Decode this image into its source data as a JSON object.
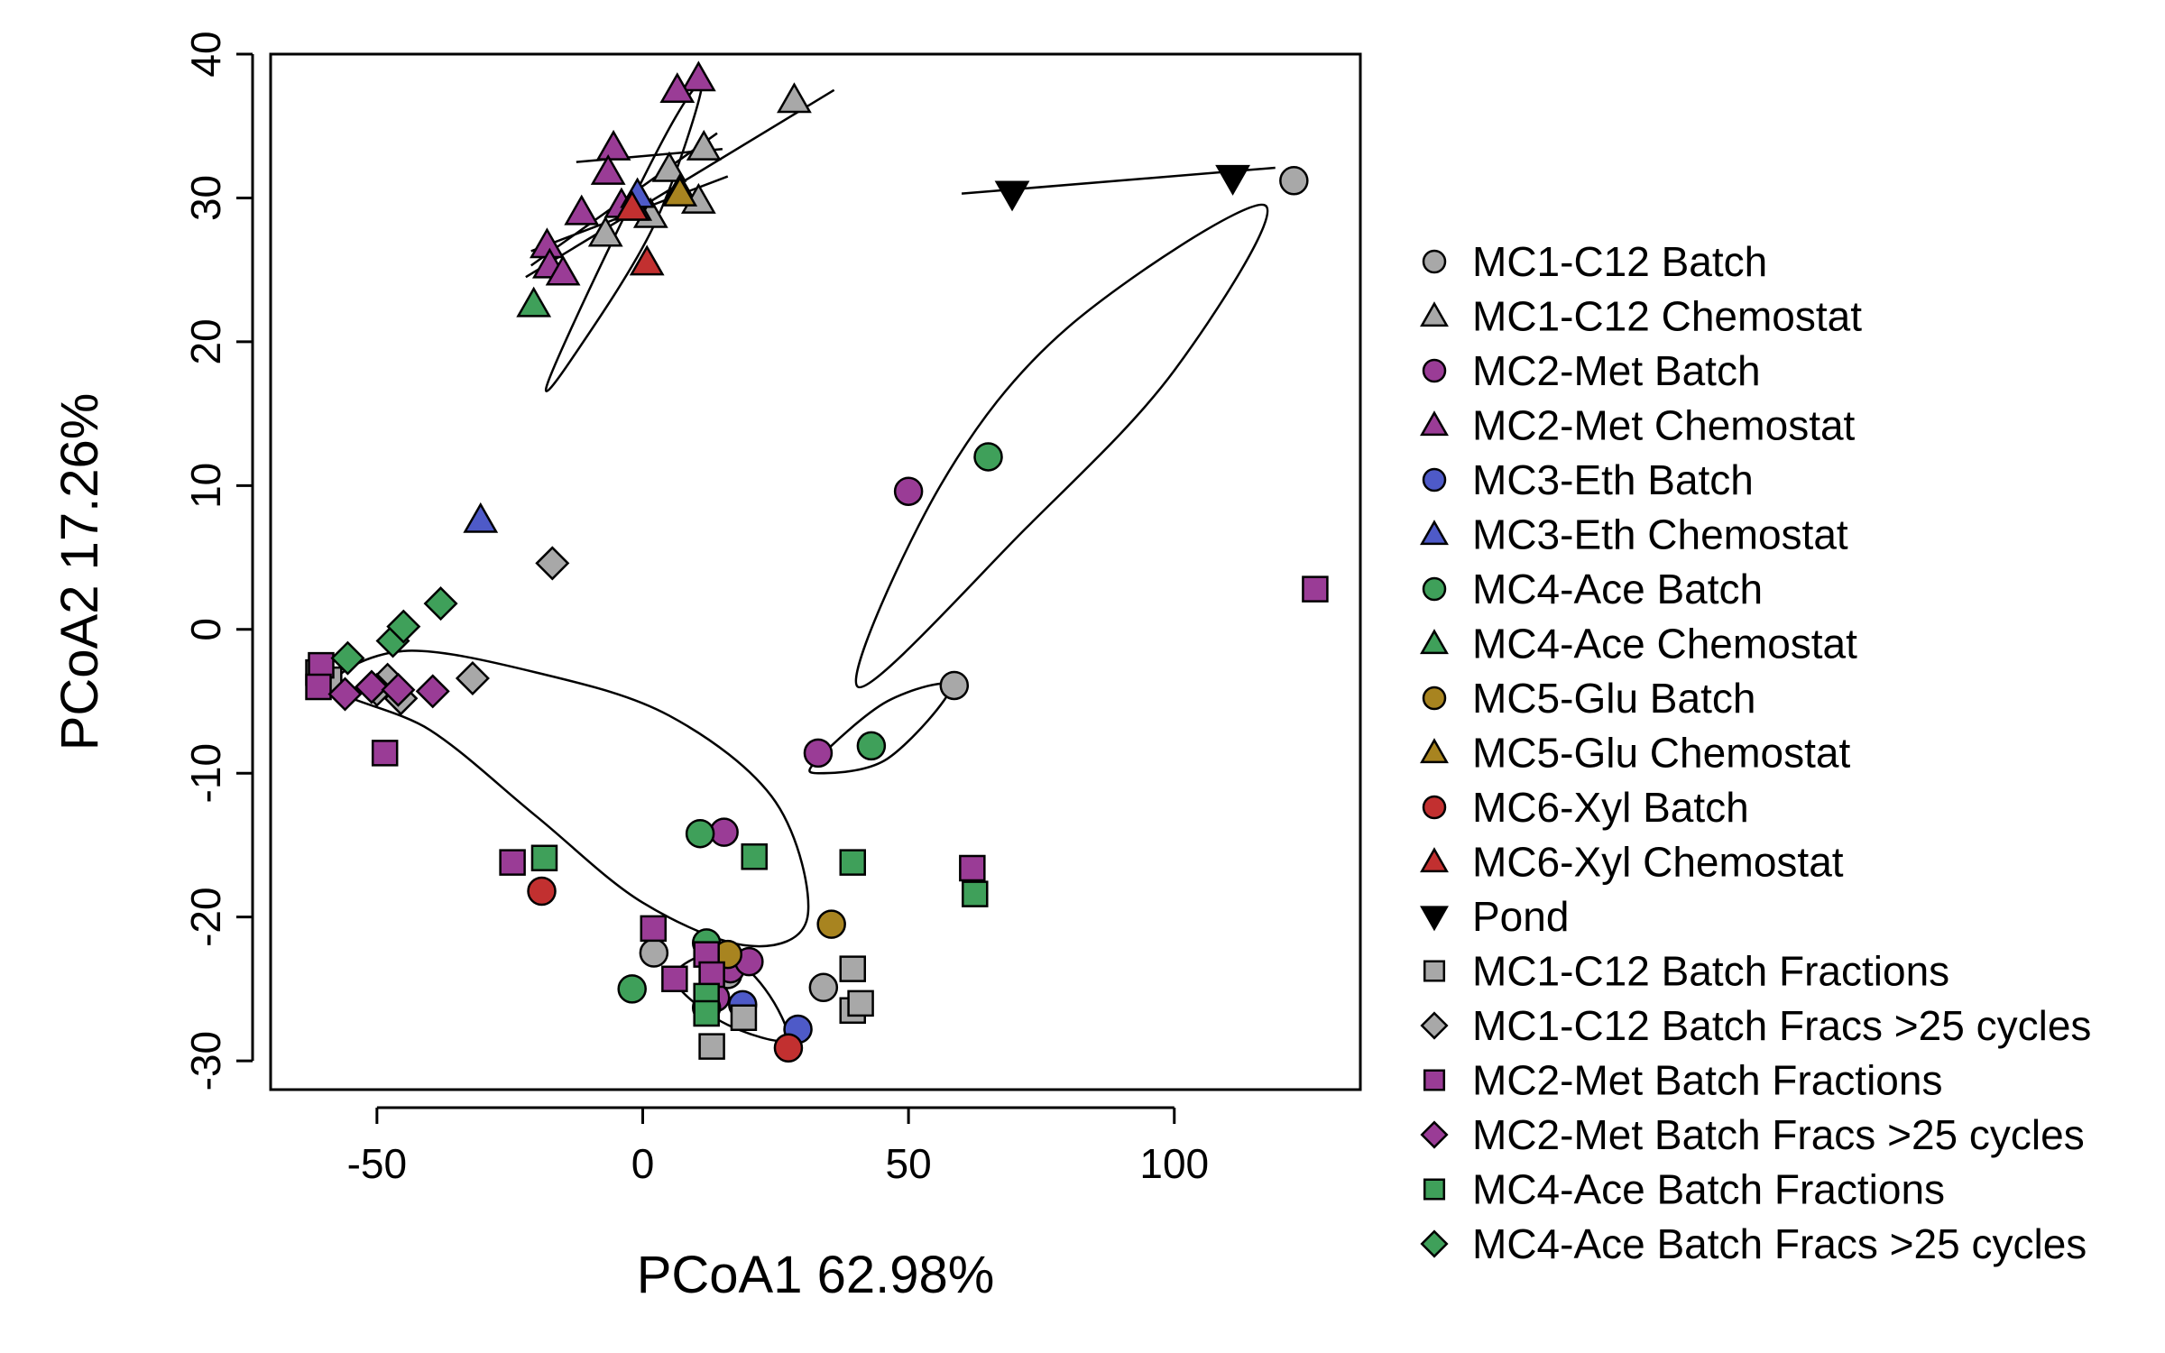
{
  "chart_data": {
    "type": "scatter",
    "title": "",
    "xlabel": "PCoA1 62.98%",
    "ylabel": "PCoA2 17.26%",
    "xlim": [
      -70,
      135
    ],
    "ylim": [
      -32,
      40
    ],
    "xticks": [
      -50,
      0,
      50,
      100
    ],
    "yticks": [
      -30,
      -20,
      -10,
      0,
      10,
      20,
      30,
      40
    ],
    "grid": false,
    "legend_position": "right",
    "series": [
      {
        "name": "MC1-C12 Batch",
        "marker": "circle",
        "color": "#a8a8a8",
        "points": [
          [
            122.5,
            31.2
          ],
          [
            58.6,
            -3.9
          ],
          [
            2.1,
            -22.5
          ],
          [
            34,
            -24.9
          ],
          [
            16,
            -24
          ]
        ]
      },
      {
        "name": "MC1-C12 Chemostat",
        "marker": "triangle",
        "color": "#a8a8a8",
        "points": [
          [
            28.5,
            36.8
          ],
          [
            11.5,
            33.5
          ],
          [
            5,
            32
          ],
          [
            7,
            30.5
          ],
          [
            10.5,
            29.8
          ],
          [
            1.5,
            28.8
          ],
          [
            -7,
            27.5
          ]
        ]
      },
      {
        "name": "MC2-Met Batch",
        "marker": "circle",
        "color": "#9a3c96",
        "points": [
          [
            50,
            9.6
          ],
          [
            33,
            -8.6
          ],
          [
            15.3,
            -14.1
          ],
          [
            16.5,
            -23.6
          ],
          [
            20,
            -23.1
          ],
          [
            13.7,
            -25.6
          ]
        ]
      },
      {
        "name": "MC2-Met Chemostat",
        "marker": "triangle",
        "color": "#9a3c96",
        "points": [
          [
            10.5,
            38.3
          ],
          [
            6.5,
            37.5
          ],
          [
            -5.5,
            33.5
          ],
          [
            -6.5,
            31.8
          ],
          [
            -4,
            29.5
          ],
          [
            -11.5,
            29
          ],
          [
            -1.5,
            29.3
          ],
          [
            -18,
            26.7
          ],
          [
            -17.5,
            25.3
          ],
          [
            -15,
            24.8
          ]
        ]
      },
      {
        "name": "MC3-Eth Batch",
        "marker": "circle",
        "color": "#4e5ac8",
        "points": [
          [
            18.8,
            -26.1
          ],
          [
            29.2,
            -27.8
          ]
        ]
      },
      {
        "name": "MC3-Eth Chemostat",
        "marker": "triangle",
        "color": "#4e5ac8",
        "points": [
          [
            -30.5,
            7.6
          ],
          [
            -1,
            30.2
          ]
        ]
      },
      {
        "name": "MC4-Ace Batch",
        "marker": "circle",
        "color": "#3fa05a",
        "points": [
          [
            65,
            12
          ],
          [
            43,
            -8.1
          ],
          [
            10.8,
            -14.2
          ],
          [
            12,
            -21.8
          ],
          [
            -2,
            -25
          ],
          [
            12,
            -26.3
          ]
        ]
      },
      {
        "name": "MC4-Ace Chemostat",
        "marker": "triangle",
        "color": "#3fa05a",
        "points": [
          [
            -20.5,
            22.6
          ]
        ]
      },
      {
        "name": "MC5-Glu Batch",
        "marker": "circle",
        "color": "#a88420",
        "points": [
          [
            35.5,
            -20.5
          ],
          [
            16,
            -22.6
          ]
        ]
      },
      {
        "name": "MC5-Glu Chemostat",
        "marker": "triangle",
        "color": "#a88420",
        "points": [
          [
            7,
            30.3
          ]
        ]
      },
      {
        "name": "MC6-Xyl Batch",
        "marker": "circle",
        "color": "#c23030",
        "points": [
          [
            -19,
            -18.2
          ],
          [
            27.4,
            -29.1
          ]
        ]
      },
      {
        "name": "MC6-Xyl Chemostat",
        "marker": "triangle",
        "color": "#c23030",
        "points": [
          [
            0.8,
            25.5
          ],
          [
            -2,
            29.3
          ]
        ]
      },
      {
        "name": "Pond",
        "marker": "triangle-down",
        "color": "#000000",
        "points": [
          [
            69.5,
            30.3
          ],
          [
            111,
            31.4
          ]
        ]
      },
      {
        "name": "MC1-C12 Batch Fractions",
        "marker": "square",
        "color": "#a8a8a8",
        "points": [
          [
            39.5,
            -23.6
          ],
          [
            39.5,
            -26.5
          ],
          [
            41,
            -26
          ],
          [
            13,
            -29
          ],
          [
            19,
            -27
          ],
          [
            -61,
            -3
          ],
          [
            -59,
            -3.5
          ]
        ]
      },
      {
        "name": "MC1-C12 Batch Fracs >25 cycles",
        "marker": "diamond",
        "color": "#a8a8a8",
        "points": [
          [
            -17,
            4.6
          ],
          [
            -32,
            -3.4
          ],
          [
            -48,
            -3.5
          ],
          [
            -45.5,
            -4.8
          ],
          [
            -50,
            -4.2
          ]
        ]
      },
      {
        "name": "MC2-Met Batch Fractions",
        "marker": "square",
        "color": "#9a3c96",
        "points": [
          [
            126.5,
            2.8
          ],
          [
            -60.5,
            -2.5
          ],
          [
            -61,
            -4
          ],
          [
            -48.5,
            -8.6
          ],
          [
            -24.5,
            -16.2
          ],
          [
            2,
            -20.8
          ],
          [
            62,
            -16.6
          ],
          [
            6,
            -24.3
          ],
          [
            12,
            -22.6
          ],
          [
            13,
            -24
          ]
        ]
      },
      {
        "name": "MC2-Met Batch Fracs >25 cycles",
        "marker": "diamond",
        "color": "#9a3c96",
        "points": [
          [
            -56,
            -4.5
          ],
          [
            -51,
            -4
          ],
          [
            -46,
            -4.2
          ],
          [
            -39.5,
            -4.3
          ]
        ]
      },
      {
        "name": "MC4-Ace Batch Fractions",
        "marker": "square",
        "color": "#3fa05a",
        "points": [
          [
            62.5,
            -18.4
          ],
          [
            39.5,
            -16.2
          ],
          [
            21,
            -15.8
          ],
          [
            -18.5,
            -15.9
          ],
          [
            12,
            -25.5
          ],
          [
            12,
            -26.7
          ]
        ]
      },
      {
        "name": "MC4-Ace Batch Fracs >25 cycles",
        "marker": "diamond",
        "color": "#3fa05a",
        "points": [
          [
            -55.5,
            -2
          ],
          [
            -47,
            -0.8
          ],
          [
            -45,
            0.2
          ],
          [
            -38,
            1.8
          ]
        ]
      }
    ],
    "fit_lines": [
      {
        "from": [
          -22,
          24.5
        ],
        "to": [
          36,
          37.5
        ]
      },
      {
        "from": [
          -12.5,
          32.5
        ],
        "to": [
          15,
          33.4
        ]
      },
      {
        "from": [
          -21,
          26.3
        ],
        "to": [
          16,
          31.5
        ]
      },
      {
        "from": [
          -21,
          25.3
        ],
        "to": [
          14,
          34.5
        ]
      },
      {
        "from": [
          60,
          30.3
        ],
        "to": [
          119,
          32.1
        ]
      }
    ],
    "ellipses": [
      {
        "points": [
          [
            -18,
            17
          ],
          [
            -7,
            26
          ],
          [
            6,
            35.5
          ],
          [
            11,
            37.5
          ],
          [
            2,
            28
          ],
          [
            -13,
            19
          ],
          [
            -18,
            17
          ]
        ]
      },
      {
        "points": [
          [
            40.5,
            -4
          ],
          [
            56,
            10
          ],
          [
            80,
            21
          ],
          [
            117,
            29.5
          ],
          [
            100,
            18
          ],
          [
            72,
            7
          ],
          [
            40.5,
            -4
          ]
        ]
      },
      {
        "points": [
          [
            33,
            -9
          ],
          [
            46,
            -5
          ],
          [
            58,
            -4
          ],
          [
            46,
            -9
          ],
          [
            33,
            -10
          ],
          [
            33,
            -9
          ]
        ]
      },
      {
        "points": [
          [
            -58,
            -4
          ],
          [
            -40,
            -7
          ],
          [
            -20,
            -13
          ],
          [
            0,
            -19
          ],
          [
            20,
            -22
          ],
          [
            31,
            -20
          ],
          [
            25,
            -12
          ],
          [
            5,
            -6
          ],
          [
            -20,
            -3
          ],
          [
            -45,
            -1.5
          ],
          [
            -58,
            -4
          ]
        ]
      },
      {
        "points": [
          [
            7,
            -23.5
          ],
          [
            15,
            -22.5
          ],
          [
            23,
            -25
          ],
          [
            27,
            -28.5
          ],
          [
            16,
            -27.5
          ],
          [
            7,
            -25
          ],
          [
            7,
            -23.5
          ]
        ]
      }
    ]
  }
}
